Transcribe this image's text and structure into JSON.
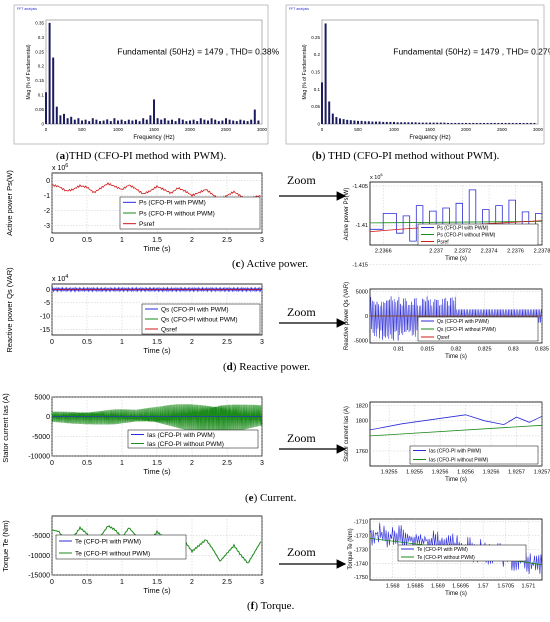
{
  "captions": {
    "a_letter": "a",
    "a_text": "THD (CFO-PI method with PWM).",
    "b_letter": "b",
    "b_text": " THD (CFO-PI method without PWM).",
    "c_letter": "c",
    "c_text": " Active power.",
    "d_letter": "d",
    "d_text": " Reactive power.",
    "e_letter": "e",
    "e_text": " Current.",
    "f_letter": "f",
    "f_text": " Torque."
  },
  "zoom_label": "Zoom",
  "colors": {
    "blue": "#2b2bd9",
    "green": "#1a8a1a",
    "red": "#d01818",
    "navy": "#1a1a5e"
  },
  "chart_data": [
    {
      "id": "fft_a",
      "type": "bar",
      "window_title": "FFT analysis",
      "annotation": "Fundamental (50Hz) = 1479 , THD= 0.38%",
      "xlabel": "Frequency (Hz)",
      "ylabel": "Mag (% of Fundamental)",
      "xlim": [
        0,
        3000
      ],
      "ylim": [
        0,
        0.36
      ],
      "xticks": [
        0,
        500,
        1000,
        1500,
        2000,
        2500,
        3000
      ],
      "yticks": [
        0,
        0.05,
        0.1,
        0.15,
        0.2,
        0.25,
        0.3,
        0.35
      ],
      "x": [
        0,
        50,
        100,
        150,
        200,
        250,
        300,
        350,
        400,
        450,
        500,
        550,
        600,
        650,
        700,
        750,
        800,
        850,
        900,
        950,
        1000,
        1050,
        1100,
        1150,
        1200,
        1250,
        1300,
        1350,
        1400,
        1450,
        1500,
        1550,
        1600,
        1650,
        1700,
        1750,
        1800,
        1850,
        1900,
        1950,
        2000,
        2050,
        2100,
        2150,
        2200,
        2250,
        2300,
        2350,
        2400,
        2450,
        2500,
        2550,
        2600,
        2650,
        2700,
        2750,
        2800,
        2850,
        2900,
        2950
      ],
      "values": [
        0.11,
        0.35,
        0.23,
        0.06,
        0.03,
        0.035,
        0.02,
        0.025,
        0.015,
        0.02,
        0.012,
        0.015,
        0.01,
        0.02,
        0.015,
        0.01,
        0.012,
        0.016,
        0.01,
        0.02,
        0.012,
        0.015,
        0.01,
        0.015,
        0.012,
        0.015,
        0.01,
        0.02,
        0.015,
        0.03,
        0.085,
        0.02,
        0.015,
        0.02,
        0.012,
        0.015,
        0.01,
        0.02,
        0.015,
        0.01,
        0.012,
        0.015,
        0.01,
        0.02,
        0.015,
        0.012,
        0.02,
        0.015,
        0.01,
        0.012,
        0.02,
        0.015,
        0.012,
        0.01,
        0.015,
        0.012,
        0.01,
        0.015,
        0.05,
        0.012
      ]
    },
    {
      "id": "fft_b",
      "type": "bar",
      "window_title": "FFT analysis",
      "annotation": "Fundamental (50Hz) = 1479 , THD= 0.27%",
      "xlabel": "Frequency (Hz)",
      "ylabel": "Mag (% of Fundamental)",
      "xlim": [
        0,
        3000
      ],
      "ylim": [
        0,
        0.3
      ],
      "xticks": [
        0,
        500,
        1000,
        1500,
        2000,
        2500,
        3000
      ],
      "yticks": [
        0,
        0.05,
        0.1,
        0.15,
        0.2,
        0.25
      ],
      "x": [
        0,
        50,
        100,
        150,
        200,
        250,
        300,
        350,
        400,
        450,
        500,
        550,
        600,
        650,
        700,
        750,
        800,
        850,
        900,
        950,
        1000,
        1050,
        1100,
        1150,
        1200,
        1250,
        1300,
        1350,
        1400,
        1450,
        1500,
        1550,
        1600,
        1650,
        1700,
        1750,
        1800,
        1850,
        1900,
        1950,
        2000,
        2050,
        2100,
        2150,
        2200,
        2250,
        2300,
        2350,
        2400,
        2450,
        2500,
        2550,
        2600,
        2650,
        2700,
        2750,
        2800,
        2850,
        2900,
        2950
      ],
      "values": [
        0.12,
        0.29,
        0.065,
        0.03,
        0.02,
        0.016,
        0.014,
        0.012,
        0.011,
        0.01,
        0.009,
        0.009,
        0.008,
        0.008,
        0.007,
        0.007,
        0.007,
        0.006,
        0.006,
        0.006,
        0.006,
        0.005,
        0.005,
        0.005,
        0.005,
        0.005,
        0.005,
        0.004,
        0.004,
        0.004,
        0.004,
        0.004,
        0.004,
        0.004,
        0.004,
        0.003,
        0.003,
        0.003,
        0.003,
        0.003,
        0.003,
        0.003,
        0.003,
        0.003,
        0.003,
        0.003,
        0.003,
        0.003,
        0.003,
        0.003,
        0.003,
        0.003,
        0.003,
        0.003,
        0.003,
        0.003,
        0.003,
        0.003,
        0.003,
        0.003
      ]
    },
    {
      "id": "ps_main",
      "type": "line",
      "ylabel": "Active power Ps(W)",
      "xlabel": "Time (s)",
      "y_multiplier": "x 10",
      "y_exponent": "6",
      "xlim": [
        0,
        3
      ],
      "ylim": [
        -3.5,
        0.5
      ],
      "xticks": [
        0,
        0.5,
        1,
        1.5,
        2,
        2.5,
        3
      ],
      "xticklabels": [
        "0",
        "0.5",
        "1",
        "1.5",
        "2",
        "2.5",
        "3"
      ],
      "yticks": [
        -3,
        -2,
        -1,
        0
      ],
      "yticklabels": [
        "-3",
        "-2",
        "-1",
        "0"
      ],
      "legend": [
        "Ps (CFO-PI with PWM)",
        "Ps (CFO-PI without PWM)",
        "Psref"
      ],
      "series": [
        {
          "name": "Ps (CFO-PI with PWM)",
          "color": "#2b2bd9",
          "x": [
            0,
            0.5,
            1,
            1.5,
            2,
            2.5,
            3
          ],
          "y": [
            -0.5,
            -0.6,
            -0.4,
            -0.7,
            -0.5,
            -0.8,
            -0.6
          ]
        },
        {
          "name": "Psref",
          "color": "#d01818",
          "x": [
            0,
            0.1,
            0.2,
            0.3,
            0.4,
            0.5,
            0.6,
            0.7,
            0.8,
            0.9,
            1.0,
            1.1,
            1.2,
            1.3,
            1.4,
            1.5,
            1.6,
            1.7,
            1.8,
            1.9,
            2.0,
            2.1,
            2.2,
            2.3,
            2.4,
            2.5,
            2.6,
            2.7,
            2.8,
            2.9,
            3.0
          ],
          "y": [
            -0.3,
            -0.4,
            -0.7,
            -0.6,
            -0.35,
            -0.45,
            -0.8,
            -0.5,
            -0.2,
            -0.4,
            -0.6,
            -0.3,
            -0.55,
            -0.9,
            -0.7,
            -0.4,
            -0.6,
            -0.85,
            -0.5,
            -0.7,
            -1.0,
            -0.8,
            -0.6,
            -0.95,
            -1.3,
            -1.0,
            -0.75,
            -1.05,
            -1.35,
            -1.1,
            -1.0
          ]
        }
      ]
    },
    {
      "id": "ps_zoom",
      "type": "line",
      "ylabel": "Active power Ps(W)",
      "xlabel": "Time (s)",
      "y_multiplier": "x 10",
      "y_exponent": "6",
      "xlim": [
        2.2365,
        2.2378
      ],
      "ylim": [
        -1.4125,
        -1.4045
      ],
      "xticks": [
        2.2366,
        2.237,
        2.2372,
        2.2374,
        2.2376,
        2.2378
      ],
      "xticklabels": [
        "2.2366",
        "2.237",
        "2.2372",
        "2.2374",
        "2.2376",
        "2.2378"
      ],
      "yticks": [
        -1.405,
        -1.41,
        -1.415
      ],
      "yticklabels": [
        "-1.405",
        "-1.41",
        "-1.415"
      ],
      "legend": [
        "Ps (CFO-PI with PWM)",
        "Ps (CFO-PI without PWM)",
        "Psref"
      ],
      "series": [
        {
          "name": "Ps (CFO-PI with PWM)",
          "color": "#2b2bd9",
          "x": [
            2.2365,
            2.2366,
            2.2367,
            2.23675,
            2.2368,
            2.23685,
            2.2369,
            2.23695,
            2.237,
            2.23705,
            2.2371,
            2.23715,
            2.2372,
            2.23725,
            2.2373,
            2.23735,
            2.2374,
            2.23745,
            2.2375,
            2.23755,
            2.2376,
            2.23765,
            2.2377,
            2.23775,
            2.2378
          ],
          "y": [
            -1.4105,
            -1.4085,
            -1.411,
            -1.4088,
            -1.412,
            -1.4075,
            -1.4112,
            -1.4082,
            -1.4115,
            -1.4078,
            -1.4108,
            -1.4072,
            -1.411,
            -1.4055,
            -1.4102,
            -1.408,
            -1.411,
            -1.4075,
            -1.4104,
            -1.4068,
            -1.4108,
            -1.4083,
            -1.4102,
            -1.4085,
            -1.4092
          ]
        },
        {
          "name": "Ps (CFO-PI without PWM)",
          "color": "#1a8a1a",
          "x": [
            2.2365,
            2.2378
          ],
          "y": [
            -1.4097,
            -1.4095
          ]
        },
        {
          "name": "Psref",
          "color": "#d01818",
          "x": [
            2.2365,
            2.2368,
            2.2371,
            2.2374,
            2.2377,
            2.2378
          ],
          "y": [
            -1.4108,
            -1.4104,
            -1.4101,
            -1.4098,
            -1.4095,
            -1.4094
          ]
        }
      ]
    },
    {
      "id": "qs_main",
      "type": "line",
      "ylabel": "Reactive power Qs (VAR)",
      "xlabel": "Time  (s)",
      "y_multiplier": "x 10",
      "y_exponent": "4",
      "xlim": [
        0,
        3
      ],
      "ylim": [
        -17,
        2
      ],
      "xticks": [
        0,
        0.5,
        1,
        1.5,
        2,
        2.5,
        3
      ],
      "xticklabels": [
        "0",
        "0.5",
        "1",
        "1.5",
        "2",
        "2.5",
        "3"
      ],
      "yticks": [
        0,
        -5,
        -10,
        -15
      ],
      "yticklabels": [
        "0",
        "-5",
        "-10",
        "-15"
      ],
      "legend": [
        "Qs (CFO-PI with PWM)",
        "Qs (CFO-PI without PWM)",
        "Qsref"
      ],
      "series": [
        {
          "name": "Qs (CFO-PI with PWM)",
          "color": "#2b2bd9",
          "x": [
            0,
            3
          ],
          "y": [
            0,
            0
          ]
        },
        {
          "name": "Qsref",
          "color": "#d01818",
          "x": [
            0,
            3
          ],
          "y": [
            0,
            0
          ]
        }
      ]
    },
    {
      "id": "qs_zoom",
      "type": "line",
      "ylabel": "Reactive power Qs (VAR)",
      "xlabel": "Time  (s)",
      "xlim": [
        0.805,
        0.835
      ],
      "ylim": [
        -5500,
        5500
      ],
      "xticks": [
        0.81,
        0.815,
        0.82,
        0.825,
        0.83,
        0.835
      ],
      "xticklabels": [
        "0.81",
        "0.815",
        "0.82",
        "0.825",
        "0.83",
        "0.835"
      ],
      "yticks": [
        5000,
        0,
        -5000
      ],
      "yticklabels": [
        "5000",
        "0",
        "-5000"
      ],
      "legend": [
        "Qs (CFO-PI with PWM)",
        "Qs (CFO-PI without PWM)",
        "Qsref"
      ],
      "series": [
        {
          "name": "Qs (CFO-PI with PWM)",
          "color": "#2b2bd9",
          "band": [
            -5000,
            4000
          ],
          "x_end": 0.82,
          "band2": [
            -1500,
            1500
          ]
        },
        {
          "name": "Qs (CFO-PI without PWM)",
          "color": "#1a8a1a",
          "x": [
            0.805,
            0.835
          ],
          "y": [
            0,
            0
          ]
        },
        {
          "name": "Qsref",
          "color": "#d01818",
          "x": [
            0.805,
            0.835
          ],
          "y": [
            0,
            0
          ]
        }
      ]
    },
    {
      "id": "ias_main",
      "type": "line",
      "ylabel": "Stator current Ias (A)",
      "xlabel": "Time (s)",
      "xlim": [
        0,
        3
      ],
      "ylim": [
        -10000,
        5000
      ],
      "xticks": [
        0,
        0.5,
        1,
        1.5,
        2,
        2.5,
        3
      ],
      "xticklabels": [
        "0",
        "0.5",
        "1",
        "1.5",
        "2",
        "2.5",
        "3"
      ],
      "yticks": [
        5000,
        0,
        -5000,
        -10000
      ],
      "yticklabels": [
        "5000",
        "0",
        "-5000",
        "-10000"
      ],
      "legend": [
        "Ias (CFO-PI with PWM)",
        "Ias (CFO-PI without PWM)"
      ],
      "series": [
        {
          "name": "Ias (CFO-PI without PWM)",
          "color": "#1a8a1a",
          "x": [
            0,
            0.3,
            0.6,
            0.9,
            1.2,
            1.5,
            1.8,
            2.1,
            2.4,
            2.7,
            3.0
          ],
          "amplitude": [
            1500,
            1800,
            2000,
            2200,
            1800,
            2500,
            3500,
            4200,
            5000,
            3800,
            3000
          ]
        },
        {
          "name": "Ias (CFO-PI with PWM)",
          "color": "#2b2bd9",
          "x": [
            0,
            3
          ],
          "y": [
            0,
            0
          ]
        }
      ]
    },
    {
      "id": "ias_zoom",
      "type": "line",
      "ylabel": "Stator current Ias (A)",
      "xlabel": "Time (s)",
      "xlim": [
        1.92545,
        1.92572
      ],
      "ylim": [
        1740,
        1825
      ],
      "xticks": [
        1.92548,
        1.92552,
        1.92556,
        1.9256,
        1.92564,
        1.92568,
        1.92572
      ],
      "xticklabels": [
        "1.9255",
        "1.9255",
        "1.9256",
        "1.9256",
        "1.9256",
        "1.9257",
        "1.9257"
      ],
      "yticks": [
        1820,
        1800,
        1780,
        1760
      ],
      "yticklabels": [
        "1820",
        "1800",
        "",
        "1760"
      ],
      "legend": [
        "Ias (CFO-PI with PWM)",
        "Ias (CFO-PI without PWM)"
      ],
      "series": [
        {
          "name": "Ias (CFO-PI with PWM)",
          "color": "#2b2bd9",
          "x": [
            1.92545,
            1.9255,
            1.92555,
            1.9256,
            1.92563,
            1.92566,
            1.92568,
            1.9257,
            1.92572
          ],
          "y": [
            1788,
            1796,
            1802,
            1808,
            1800,
            1795,
            1805,
            1798,
            1806
          ]
        },
        {
          "name": "Ias (CFO-PI without PWM)",
          "color": "#1a8a1a",
          "x": [
            1.92545,
            1.92572
          ],
          "y": [
            1780,
            1794
          ]
        }
      ]
    },
    {
      "id": "te_main",
      "type": "line",
      "ylabel": "Torque Te (Nm)",
      "xlabel": "Time  (s)",
      "xlim": [
        0,
        3
      ],
      "ylim": [
        -15000,
        0
      ],
      "xticks": [
        0,
        0.5,
        1,
        1.5,
        2,
        2.5,
        3
      ],
      "xticklabels": [
        "0",
        "0.5",
        "1",
        "1.5",
        "2",
        "2.5",
        "3"
      ],
      "yticks": [
        -5000,
        -10000,
        -15000
      ],
      "yticklabels": [
        "-5000",
        "-10000",
        "-15000"
      ],
      "legend": [
        "Te (CFO-PI with PWM)",
        "Te (CFO-PI without PWM)"
      ],
      "series": [
        {
          "name": "Te (CFO-PI without PWM)",
          "color": "#1a8a1a",
          "x": [
            0,
            0.1,
            0.2,
            0.3,
            0.4,
            0.5,
            0.6,
            0.7,
            0.8,
            0.9,
            1.0,
            1.1,
            1.2,
            1.3,
            1.4,
            1.5,
            1.6,
            1.7,
            1.8,
            1.9,
            2.0,
            2.1,
            2.2,
            2.3,
            2.4,
            2.5,
            2.6,
            2.7,
            2.8,
            2.9,
            3.0
          ],
          "y": [
            -3500,
            -4000,
            -6500,
            -5500,
            -3000,
            -4500,
            -7000,
            -5000,
            -2500,
            -3500,
            -5500,
            -3000,
            -5000,
            -8000,
            -6500,
            -4000,
            -5500,
            -7500,
            -5000,
            -6500,
            -9000,
            -7500,
            -6000,
            -8500,
            -11500,
            -9500,
            -7500,
            -10000,
            -12000,
            -9000,
            -6000
          ]
        }
      ]
    },
    {
      "id": "te_zoom",
      "type": "line",
      "ylabel": "Torque Te (Nm)",
      "xlabel": "Time  (s)",
      "xlim": [
        1.5675,
        1.5713
      ],
      "ylim": [
        -1752,
        -1708
      ],
      "xticks": [
        1.568,
        1.5685,
        1.569,
        1.5695,
        1.57,
        1.5705,
        1.571
      ],
      "xticklabels": [
        "1.568",
        "1.5685",
        "1.569",
        "1.5695",
        "1.57",
        "1.5705",
        "1.571"
      ],
      "yticks": [
        -1710,
        -1720,
        -1730,
        -1740,
        -1750
      ],
      "yticklabels": [
        "-1710",
        "-1720",
        "-1730",
        "-1740",
        "-1750"
      ],
      "legend": [
        "Te (CFO-PI with PWM)",
        "Te (CFO-PI without PWM)"
      ],
      "series": [
        {
          "name": "Te (CFO-PI with PWM)",
          "color": "#2b2bd9",
          "trend": [
            [
              1.5675,
              -1718
            ],
            [
              1.569,
              -1725
            ],
            [
              1.5705,
              -1735
            ],
            [
              1.5713,
              -1742
            ]
          ],
          "noise": 9
        },
        {
          "name": "Te (CFO-PI without PWM)",
          "color": "#1a8a1a",
          "x": [
            1.5675,
            1.569,
            1.5705,
            1.5713
          ],
          "y": [
            -1722,
            -1728,
            -1737,
            -1741
          ]
        }
      ]
    }
  ]
}
